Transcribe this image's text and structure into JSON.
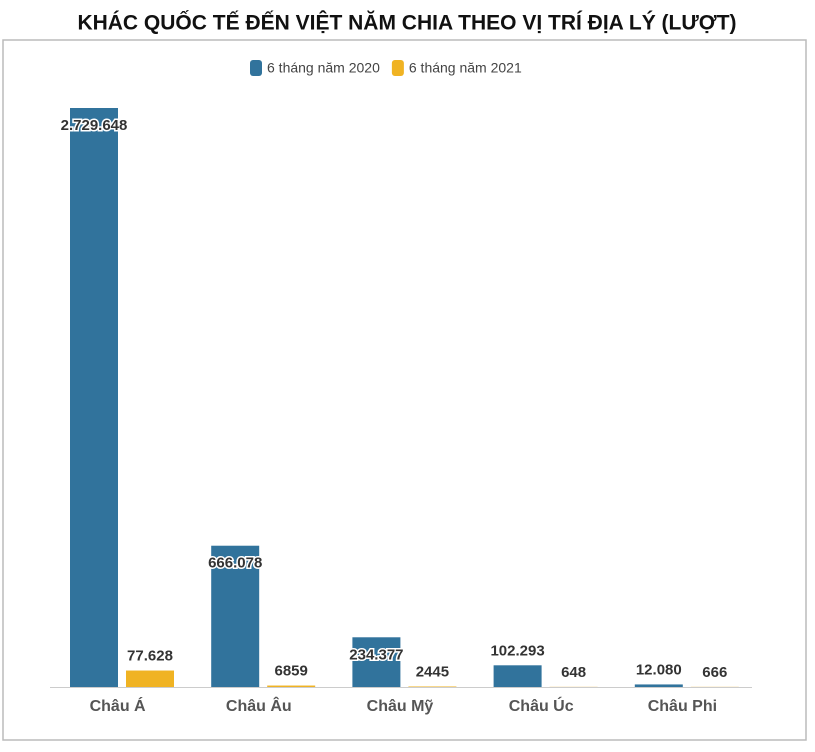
{
  "chart_data": {
    "type": "bar",
    "title": "KHÁC QUỐC TẾ ĐẾN VIỆT NĂM CHIA THEO VỊ TRÍ ĐỊA LÝ (LƯỢT)",
    "categories": [
      "Châu Á",
      "Châu Âu",
      "Châu Mỹ",
      "Châu Úc",
      "Châu Phi"
    ],
    "series": [
      {
        "name": "6 tháng năm 2020",
        "color": "#31739c",
        "values": [
          2729648,
          666078,
          234377,
          102293,
          12080
        ],
        "value_labels": [
          "2.729.648",
          "666.078",
          "234.377",
          "102.293",
          "12.080"
        ]
      },
      {
        "name": "6 tháng năm 2021",
        "color": "#f0b323",
        "values": [
          77628,
          6859,
          2445,
          648,
          666
        ],
        "value_labels": [
          "77.628",
          "6859",
          "2445",
          "648",
          "666"
        ]
      }
    ],
    "legend": "top"
  }
}
